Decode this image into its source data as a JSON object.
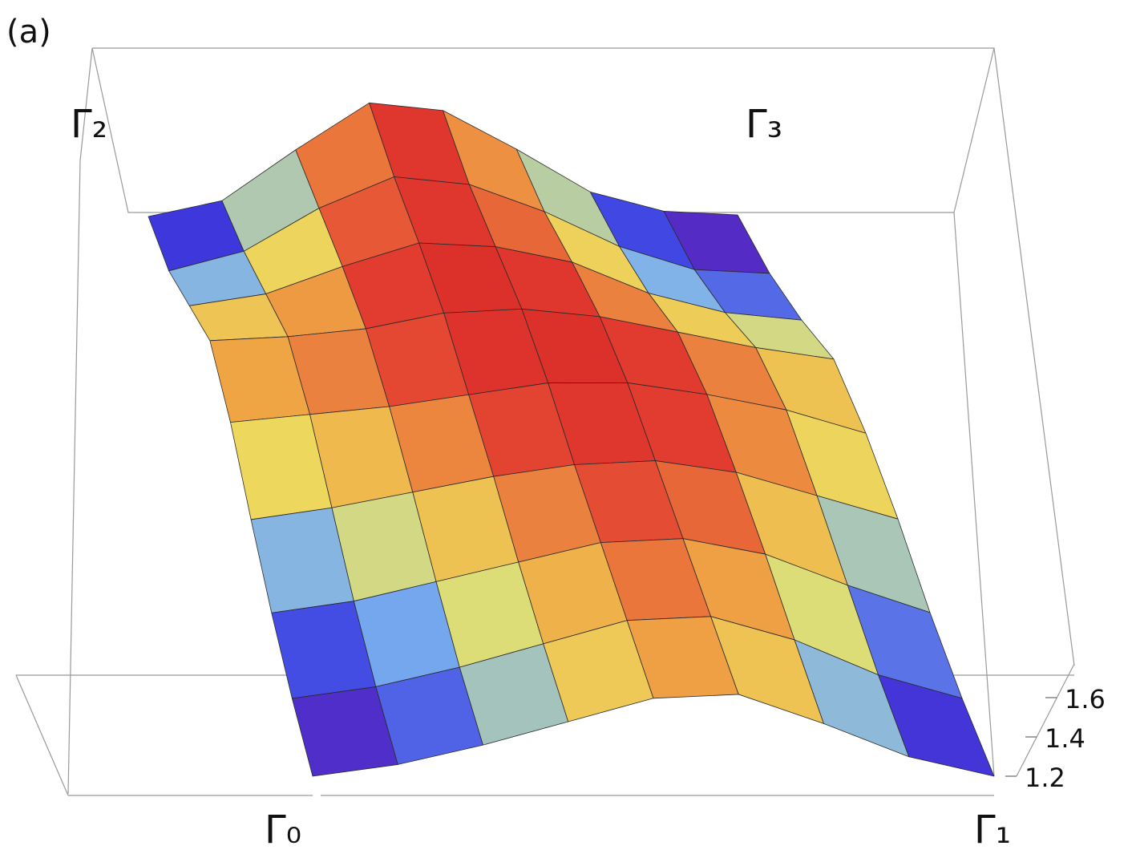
{
  "chart_data": {
    "type": "surface",
    "title": "(a)",
    "corner_labels": [
      "Γ₀",
      "Γ₁",
      "Γ₂",
      "Γ₃"
    ],
    "z": [
      [
        1.18,
        1.24,
        1.34,
        1.46,
        1.58,
        1.6,
        1.45,
        1.28,
        1.18
      ],
      [
        1.22,
        1.28,
        1.38,
        1.5,
        1.62,
        1.64,
        1.52,
        1.34,
        1.22
      ],
      [
        1.3,
        1.36,
        1.46,
        1.56,
        1.66,
        1.68,
        1.6,
        1.44,
        1.3
      ],
      [
        1.42,
        1.48,
        1.56,
        1.64,
        1.7,
        1.72,
        1.66,
        1.54,
        1.42
      ],
      [
        1.56,
        1.6,
        1.64,
        1.7,
        1.76,
        1.76,
        1.7,
        1.62,
        1.5
      ],
      [
        1.62,
        1.64,
        1.68,
        1.76,
        1.78,
        1.74,
        1.66,
        1.58,
        1.52
      ],
      [
        1.44,
        1.5,
        1.64,
        1.76,
        1.74,
        1.66,
        1.5,
        1.4,
        1.36
      ],
      [
        1.26,
        1.36,
        1.58,
        1.74,
        1.7,
        1.56,
        1.38,
        1.26,
        1.24
      ],
      [
        1.18,
        1.26,
        1.52,
        1.76,
        1.72,
        1.52,
        1.3,
        1.2,
        1.18
      ]
    ],
    "zlim": [
      1.18,
      1.8
    ],
    "zticks": [
      1.2,
      1.4,
      1.6
    ]
  }
}
